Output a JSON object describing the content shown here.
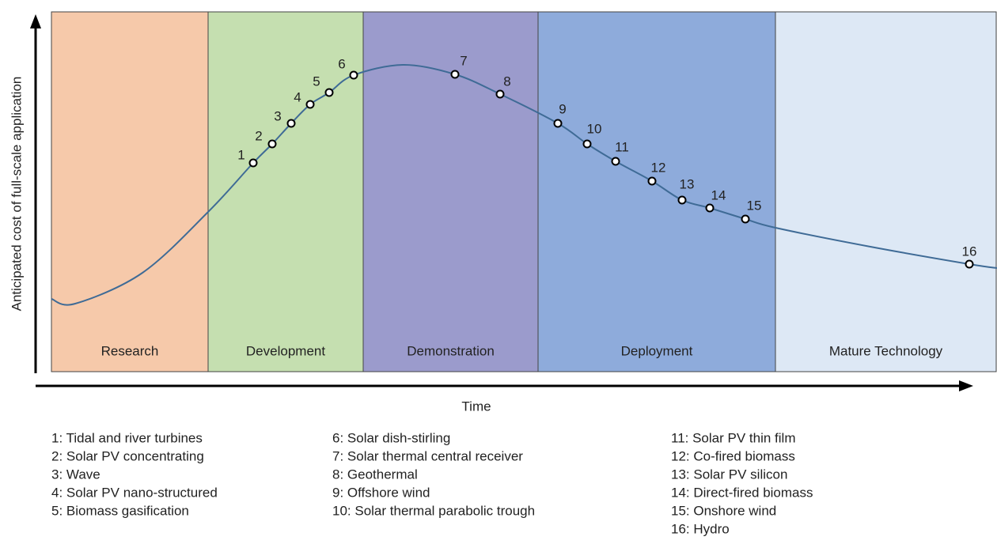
{
  "y_axis_label": "Anticipated cost of full-scale application",
  "x_axis_label": "Time",
  "stages": [
    "Research",
    "Development",
    "Demonstration",
    "Deployment",
    "Mature Technology"
  ],
  "points": [
    "1",
    "2",
    "3",
    "4",
    "5",
    "6",
    "7",
    "8",
    "9",
    "10",
    "11",
    "12",
    "13",
    "14",
    "15",
    "16"
  ],
  "legend": [
    [
      "1: Tidal and river turbines",
      "2: Solar PV concentrating",
      "3: Wave",
      "4: Solar PV nano-structured",
      "5: Biomass gasification"
    ],
    [
      "6: Solar dish-stirling",
      "7: Solar thermal central receiver",
      "8: Geothermal",
      "9: Offshore wind",
      "10: Solar thermal parabolic trough"
    ],
    [
      "11: Solar PV thin film",
      "12: Co-fired biomass",
      "13: Solar PV silicon",
      "14: Direct-fired biomass",
      "15: Onshore wind",
      "16: Hydro"
    ]
  ]
}
